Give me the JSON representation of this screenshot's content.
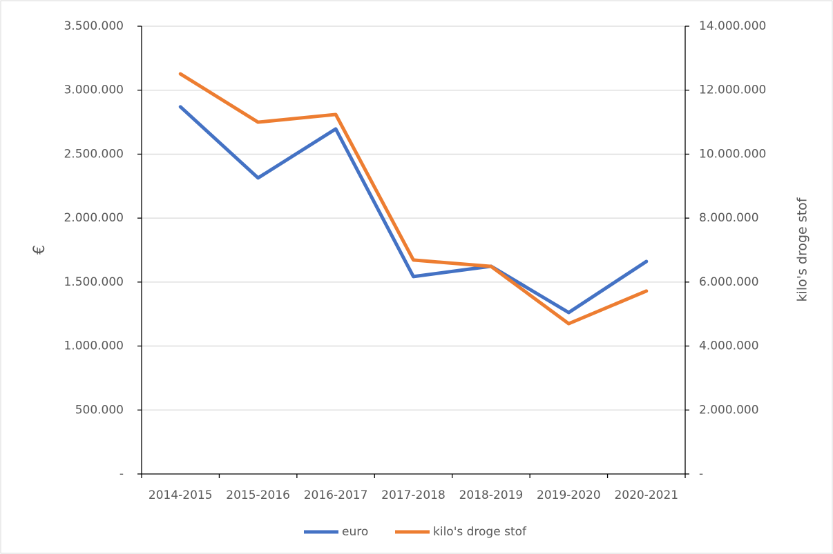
{
  "chart_data": {
    "type": "line",
    "categories": [
      "2014-2015",
      "2015-2016",
      "2016-2017",
      "2017-2018",
      "2018-2019",
      "2019-2020",
      "2020-2021"
    ],
    "ylabel": "€",
    "y2label": "kilo's droge stof",
    "ylim": [
      0,
      3500000
    ],
    "yticks": [
      {
        "value": 0,
        "label": "-"
      },
      {
        "value": 500000,
        "label": "500.000"
      },
      {
        "value": 1000000,
        "label": "1.000.000"
      },
      {
        "value": 1500000,
        "label": "1.500.000"
      },
      {
        "value": 2000000,
        "label": "2.000.000"
      },
      {
        "value": 2500000,
        "label": "2.500.000"
      },
      {
        "value": 3000000,
        "label": "3.000.000"
      },
      {
        "value": 3500000,
        "label": "3.500.000"
      }
    ],
    "y2lim": [
      0,
      14000000
    ],
    "y2ticks": [
      {
        "value": 0,
        "label": "-"
      },
      {
        "value": 2000000,
        "label": "2.000.000"
      },
      {
        "value": 4000000,
        "label": "4.000.000"
      },
      {
        "value": 6000000,
        "label": "6.000.000"
      },
      {
        "value": 8000000,
        "label": "8.000.000"
      },
      {
        "value": 10000000,
        "label": "10.000.000"
      },
      {
        "value": 12000000,
        "label": "12.000.000"
      },
      {
        "value": 14000000,
        "label": "14.000.000"
      }
    ],
    "grid": true,
    "legend": "bottom",
    "series": [
      {
        "name": "euro",
        "color": "#4472c4",
        "values": [
          2870000,
          2314000,
          2697000,
          1543000,
          1624000,
          1262000,
          1661000
        ]
      },
      {
        "name": "kilo's droge stof",
        "color": "#ed7d31",
        "axis": "y2",
        "values": [
          12510000,
          11000000,
          11240000,
          6690000,
          6490000,
          4700000,
          5720000
        ]
      }
    ]
  }
}
